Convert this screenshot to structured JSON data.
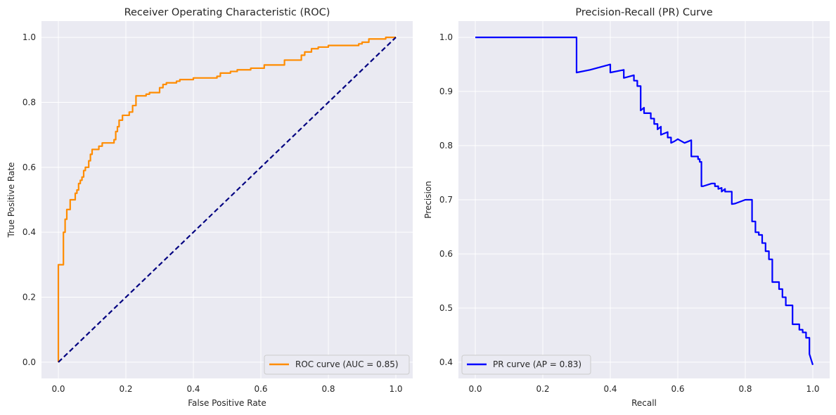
{
  "chart_data": [
    {
      "type": "line",
      "title": "Receiver Operating Characteristic (ROC)",
      "xlabel": "False Positive Rate",
      "ylabel": "True Positive Rate",
      "xlim": [
        -0.05,
        1.05
      ],
      "ylim": [
        -0.05,
        1.05
      ],
      "xticks": [
        "0.0",
        "0.2",
        "0.4",
        "0.6",
        "0.8",
        "1.0"
      ],
      "yticks": [
        "0.0",
        "0.2",
        "0.4",
        "0.6",
        "0.8",
        "1.0"
      ],
      "grid": true,
      "legend_position": "lower right",
      "series": [
        {
          "name": "ROC curve (AUC = 0.85)",
          "color": "#ff8c00",
          "style": "solid",
          "x": [
            0.0,
            0.0,
            0.003,
            0.003,
            0.015,
            0.015,
            0.02,
            0.02,
            0.025,
            0.025,
            0.035,
            0.035,
            0.05,
            0.05,
            0.055,
            0.055,
            0.06,
            0.06,
            0.065,
            0.065,
            0.07,
            0.07,
            0.075,
            0.075,
            0.08,
            0.08,
            0.09,
            0.09,
            0.095,
            0.095,
            0.1,
            0.1,
            0.12,
            0.12,
            0.13,
            0.13,
            0.165,
            0.165,
            0.17,
            0.17,
            0.175,
            0.175,
            0.18,
            0.18,
            0.19,
            0.19,
            0.21,
            0.21,
            0.22,
            0.22,
            0.23,
            0.23,
            0.26,
            0.26,
            0.27,
            0.27,
            0.3,
            0.3,
            0.31,
            0.31,
            0.32,
            0.32,
            0.35,
            0.35,
            0.36,
            0.36,
            0.4,
            0.4,
            0.47,
            0.47,
            0.48,
            0.48,
            0.51,
            0.51,
            0.53,
            0.53,
            0.57,
            0.57,
            0.61,
            0.61,
            0.67,
            0.67,
            0.72,
            0.72,
            0.73,
            0.73,
            0.75,
            0.75,
            0.77,
            0.77,
            0.8,
            0.8,
            0.89,
            0.89,
            0.9,
            0.9,
            0.92,
            0.92,
            0.97,
            0.97,
            1.0
          ],
          "y": [
            0.0,
            0.3,
            0.3,
            0.3,
            0.3,
            0.4,
            0.4,
            0.44,
            0.44,
            0.47,
            0.47,
            0.5,
            0.5,
            0.52,
            0.52,
            0.53,
            0.53,
            0.55,
            0.55,
            0.56,
            0.56,
            0.57,
            0.57,
            0.59,
            0.59,
            0.6,
            0.6,
            0.62,
            0.62,
            0.64,
            0.64,
            0.655,
            0.655,
            0.665,
            0.665,
            0.675,
            0.675,
            0.685,
            0.685,
            0.71,
            0.71,
            0.725,
            0.725,
            0.745,
            0.745,
            0.76,
            0.76,
            0.77,
            0.77,
            0.79,
            0.79,
            0.82,
            0.82,
            0.825,
            0.825,
            0.83,
            0.83,
            0.845,
            0.845,
            0.855,
            0.855,
            0.86,
            0.86,
            0.865,
            0.865,
            0.87,
            0.87,
            0.875,
            0.875,
            0.88,
            0.88,
            0.89,
            0.89,
            0.895,
            0.895,
            0.9,
            0.9,
            0.905,
            0.905,
            0.915,
            0.915,
            0.93,
            0.93,
            0.945,
            0.945,
            0.955,
            0.955,
            0.965,
            0.965,
            0.97,
            0.97,
            0.975,
            0.975,
            0.98,
            0.98,
            0.985,
            0.985,
            0.995,
            0.995,
            1.0,
            1.0
          ]
        },
        {
          "color": "#000080",
          "style": "dashed",
          "x": [
            0.0,
            1.0
          ],
          "y": [
            0.0,
            1.0
          ]
        }
      ]
    },
    {
      "type": "line",
      "title": "Precision-Recall (PR) Curve",
      "xlabel": "Recall",
      "ylabel": "Precision",
      "xlim": [
        -0.05,
        1.05
      ],
      "ylim": [
        0.37,
        1.03
      ],
      "xticks": [
        "0.0",
        "0.2",
        "0.4",
        "0.6",
        "0.8",
        "1.0"
      ],
      "yticks": [
        "0.4",
        "0.5",
        "0.6",
        "0.7",
        "0.8",
        "0.9",
        "1.0"
      ],
      "grid": true,
      "legend_position": "lower left",
      "series": [
        {
          "name": "PR curve (AP = 0.83)",
          "color": "#0000ff",
          "style": "solid",
          "x": [
            0.0,
            0.3,
            0.3,
            0.34,
            0.4,
            0.4,
            0.44,
            0.44,
            0.47,
            0.47,
            0.48,
            0.48,
            0.49,
            0.49,
            0.5,
            0.5,
            0.52,
            0.52,
            0.53,
            0.53,
            0.54,
            0.54,
            0.55,
            0.55,
            0.57,
            0.57,
            0.58,
            0.58,
            0.59,
            0.6,
            0.62,
            0.64,
            0.64,
            0.66,
            0.66,
            0.665,
            0.665,
            0.67,
            0.67,
            0.675,
            0.675,
            0.7,
            0.71,
            0.71,
            0.72,
            0.72,
            0.73,
            0.73,
            0.74,
            0.74,
            0.76,
            0.76,
            0.77,
            0.77,
            0.8,
            0.8,
            0.82,
            0.82,
            0.83,
            0.83,
            0.84,
            0.84,
            0.85,
            0.85,
            0.86,
            0.86,
            0.87,
            0.87,
            0.88,
            0.88,
            0.9,
            0.9,
            0.91,
            0.91,
            0.92,
            0.92,
            0.94,
            0.94,
            0.96,
            0.96,
            0.97,
            0.97,
            0.98,
            0.98,
            0.99,
            0.99,
            1.0
          ],
          "y": [
            1.0,
            1.0,
            0.935,
            0.94,
            0.95,
            0.935,
            0.94,
            0.925,
            0.93,
            0.92,
            0.92,
            0.91,
            0.91,
            0.865,
            0.87,
            0.86,
            0.86,
            0.85,
            0.85,
            0.84,
            0.84,
            0.83,
            0.835,
            0.82,
            0.825,
            0.815,
            0.815,
            0.805,
            0.808,
            0.812,
            0.805,
            0.81,
            0.78,
            0.78,
            0.775,
            0.775,
            0.77,
            0.77,
            0.725,
            0.725,
            0.725,
            0.73,
            0.73,
            0.725,
            0.725,
            0.72,
            0.722,
            0.715,
            0.72,
            0.715,
            0.715,
            0.692,
            0.693,
            0.693,
            0.7,
            0.7,
            0.7,
            0.66,
            0.66,
            0.64,
            0.64,
            0.635,
            0.635,
            0.62,
            0.62,
            0.605,
            0.605,
            0.59,
            0.59,
            0.548,
            0.548,
            0.535,
            0.535,
            0.52,
            0.52,
            0.505,
            0.505,
            0.47,
            0.47,
            0.46,
            0.46,
            0.455,
            0.455,
            0.445,
            0.445,
            0.415,
            0.395
          ]
        }
      ]
    }
  ]
}
